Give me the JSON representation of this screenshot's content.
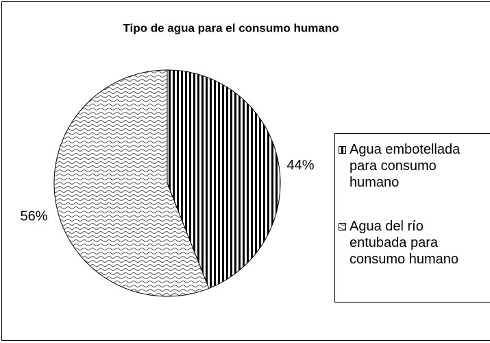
{
  "chart_data": {
    "type": "pie",
    "title": "Tipo de agua para el consumo humano",
    "categories": [
      "Agua embotellada para consumo humano",
      "Agua del río entubada para consumo humano"
    ],
    "values": [
      44,
      56
    ],
    "value_labels": [
      "44%",
      "56%"
    ]
  }
}
